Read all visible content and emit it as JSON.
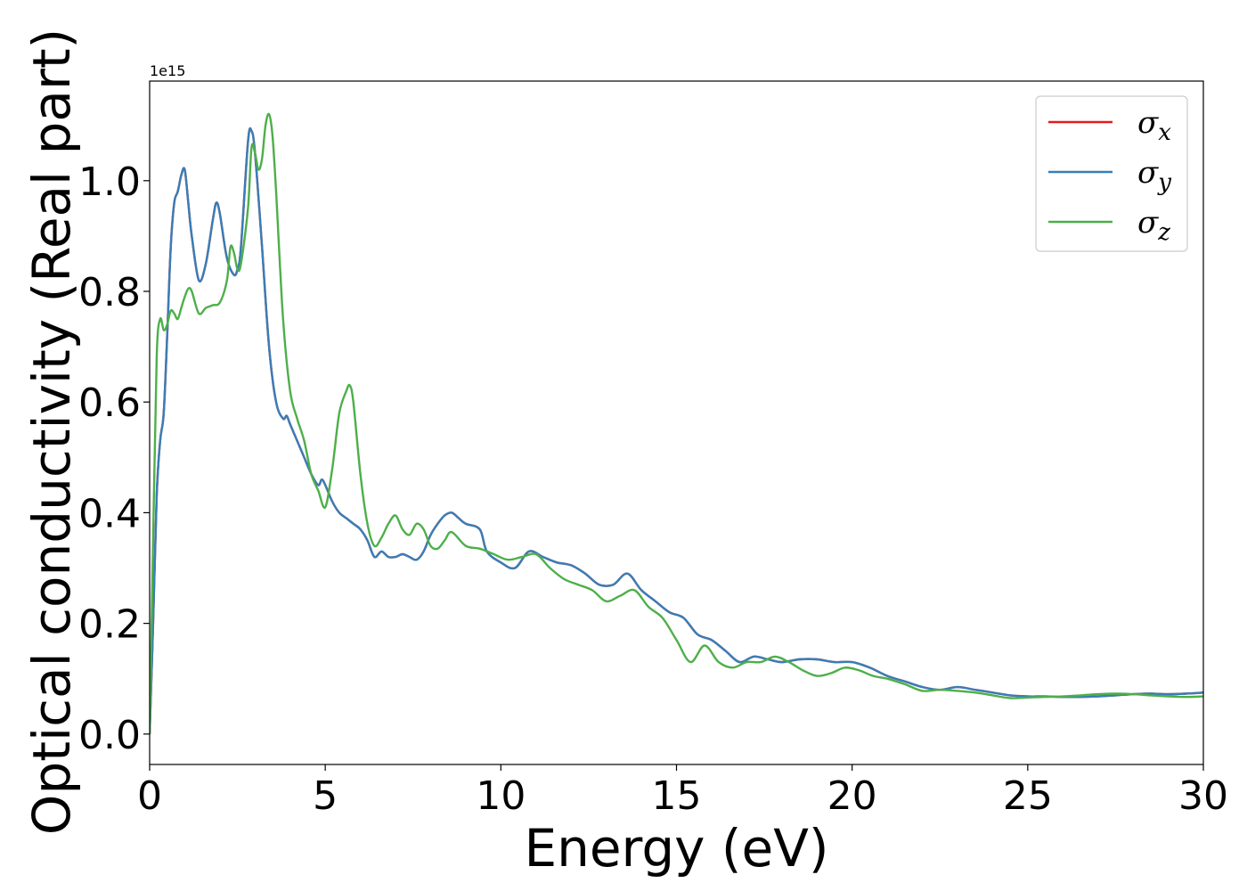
{
  "chart_data": {
    "type": "line",
    "xlabel": "Energy (eV)",
    "ylabel": "Optical conductivity (Real part)",
    "y_offset_label": "1e15",
    "xlim": [
      0,
      30
    ],
    "ylim": [
      -0.055,
      1.18
    ],
    "xticks": [
      0,
      5,
      10,
      15,
      20,
      25,
      30
    ],
    "xtick_labels": [
      "0",
      "5",
      "10",
      "15",
      "20",
      "25",
      "30"
    ],
    "yticks": [
      0.0,
      0.2,
      0.4,
      0.6,
      0.8,
      1.0
    ],
    "ytick_labels": [
      "0.0",
      "0.2",
      "0.4",
      "0.6",
      "0.8",
      "1.0"
    ],
    "grid": false,
    "legend_position": "top-right",
    "series": [
      {
        "name": "σ",
        "subscript": "x",
        "color": "#e41a1c",
        "x": [
          0,
          0.1,
          0.2,
          0.3,
          0.4,
          0.5,
          0.6,
          0.7,
          0.8,
          0.9,
          1.0,
          1.1,
          1.2,
          1.4,
          1.6,
          1.8,
          1.9,
          2.0,
          2.2,
          2.4,
          2.5,
          2.6,
          2.8,
          2.9,
          3.0,
          3.2,
          3.4,
          3.6,
          3.8,
          3.9,
          4.0,
          4.2,
          4.4,
          4.6,
          4.8,
          4.9,
          5.0,
          5.2,
          5.4,
          5.6,
          5.8,
          6.0,
          6.2,
          6.4,
          6.6,
          6.8,
          7.0,
          7.2,
          7.4,
          7.6,
          7.8,
          8.0,
          8.2,
          8.4,
          8.6,
          8.8,
          9.0,
          9.4,
          9.6,
          10.0,
          10.4,
          10.8,
          11.2,
          11.6,
          12.0,
          12.4,
          12.8,
          13.2,
          13.6,
          14.0,
          14.4,
          14.8,
          15.2,
          15.6,
          16.0,
          16.4,
          16.8,
          17.2,
          17.6,
          18.0,
          18.5,
          19.0,
          19.5,
          20.0,
          20.5,
          21.0,
          21.5,
          22.0,
          22.5,
          23.0,
          23.5,
          24.0,
          24.5,
          25.0,
          25.5,
          26.0,
          26.5,
          27.0,
          27.5,
          28.0,
          28.5,
          29.0,
          29.5,
          30.0
        ],
        "y": [
          0.0,
          0.2,
          0.43,
          0.53,
          0.58,
          0.72,
          0.88,
          0.96,
          0.98,
          1.01,
          1.02,
          0.96,
          0.9,
          0.82,
          0.85,
          0.93,
          0.96,
          0.94,
          0.86,
          0.83,
          0.84,
          0.88,
          1.07,
          1.09,
          1.05,
          0.88,
          0.7,
          0.6,
          0.57,
          0.575,
          0.56,
          0.53,
          0.5,
          0.47,
          0.45,
          0.46,
          0.45,
          0.42,
          0.4,
          0.39,
          0.38,
          0.37,
          0.35,
          0.32,
          0.33,
          0.32,
          0.32,
          0.325,
          0.32,
          0.315,
          0.33,
          0.36,
          0.38,
          0.395,
          0.4,
          0.39,
          0.38,
          0.37,
          0.33,
          0.31,
          0.3,
          0.33,
          0.32,
          0.31,
          0.305,
          0.29,
          0.27,
          0.27,
          0.29,
          0.26,
          0.24,
          0.22,
          0.21,
          0.18,
          0.17,
          0.15,
          0.13,
          0.14,
          0.135,
          0.13,
          0.135,
          0.135,
          0.13,
          0.13,
          0.12,
          0.105,
          0.095,
          0.085,
          0.08,
          0.085,
          0.08,
          0.075,
          0.07,
          0.068,
          0.068,
          0.067,
          0.067,
          0.068,
          0.07,
          0.072,
          0.073,
          0.072,
          0.073,
          0.075
        ]
      },
      {
        "name": "σ",
        "subscript": "y",
        "color": "#377eb8",
        "x": [
          0,
          0.1,
          0.2,
          0.3,
          0.4,
          0.5,
          0.6,
          0.7,
          0.8,
          0.9,
          1.0,
          1.1,
          1.2,
          1.4,
          1.6,
          1.8,
          1.9,
          2.0,
          2.2,
          2.4,
          2.5,
          2.6,
          2.8,
          2.9,
          3.0,
          3.2,
          3.4,
          3.6,
          3.8,
          3.9,
          4.0,
          4.2,
          4.4,
          4.6,
          4.8,
          4.9,
          5.0,
          5.2,
          5.4,
          5.6,
          5.8,
          6.0,
          6.2,
          6.4,
          6.6,
          6.8,
          7.0,
          7.2,
          7.4,
          7.6,
          7.8,
          8.0,
          8.2,
          8.4,
          8.6,
          8.8,
          9.0,
          9.4,
          9.6,
          10.0,
          10.4,
          10.8,
          11.2,
          11.6,
          12.0,
          12.4,
          12.8,
          13.2,
          13.6,
          14.0,
          14.4,
          14.8,
          15.2,
          15.6,
          16.0,
          16.4,
          16.8,
          17.2,
          17.6,
          18.0,
          18.5,
          19.0,
          19.5,
          20.0,
          20.5,
          21.0,
          21.5,
          22.0,
          22.5,
          23.0,
          23.5,
          24.0,
          24.5,
          25.0,
          25.5,
          26.0,
          26.5,
          27.0,
          27.5,
          28.0,
          28.5,
          29.0,
          29.5,
          30.0
        ],
        "y": [
          0.0,
          0.2,
          0.43,
          0.53,
          0.58,
          0.72,
          0.88,
          0.96,
          0.98,
          1.01,
          1.02,
          0.96,
          0.9,
          0.82,
          0.85,
          0.93,
          0.96,
          0.94,
          0.86,
          0.83,
          0.84,
          0.88,
          1.07,
          1.09,
          1.05,
          0.88,
          0.7,
          0.6,
          0.57,
          0.575,
          0.56,
          0.53,
          0.5,
          0.47,
          0.45,
          0.46,
          0.45,
          0.42,
          0.4,
          0.39,
          0.38,
          0.37,
          0.35,
          0.32,
          0.33,
          0.32,
          0.32,
          0.325,
          0.32,
          0.315,
          0.33,
          0.36,
          0.38,
          0.395,
          0.4,
          0.39,
          0.38,
          0.37,
          0.33,
          0.31,
          0.3,
          0.33,
          0.32,
          0.31,
          0.305,
          0.29,
          0.27,
          0.27,
          0.29,
          0.26,
          0.24,
          0.22,
          0.21,
          0.18,
          0.17,
          0.15,
          0.13,
          0.14,
          0.135,
          0.13,
          0.135,
          0.135,
          0.13,
          0.13,
          0.12,
          0.105,
          0.095,
          0.085,
          0.08,
          0.085,
          0.08,
          0.075,
          0.07,
          0.068,
          0.068,
          0.067,
          0.067,
          0.068,
          0.07,
          0.072,
          0.073,
          0.072,
          0.073,
          0.075
        ]
      },
      {
        "name": "σ",
        "subscript": "z",
        "color": "#4daf4a",
        "x": [
          0,
          0.1,
          0.2,
          0.3,
          0.4,
          0.5,
          0.6,
          0.7,
          0.8,
          0.9,
          1.0,
          1.1,
          1.2,
          1.4,
          1.6,
          1.8,
          2.0,
          2.2,
          2.3,
          2.4,
          2.5,
          2.6,
          2.8,
          2.9,
          3.0,
          3.1,
          3.2,
          3.3,
          3.4,
          3.5,
          3.6,
          3.8,
          4.0,
          4.2,
          4.4,
          4.6,
          4.8,
          5.0,
          5.2,
          5.4,
          5.6,
          5.7,
          5.8,
          6.0,
          6.2,
          6.4,
          6.6,
          6.8,
          7.0,
          7.2,
          7.4,
          7.6,
          7.8,
          8.0,
          8.2,
          8.4,
          8.6,
          9.0,
          9.4,
          9.8,
          10.2,
          10.6,
          11.0,
          11.4,
          11.8,
          12.2,
          12.6,
          13.0,
          13.4,
          13.8,
          14.2,
          14.6,
          15.0,
          15.4,
          15.8,
          16.2,
          16.6,
          17.0,
          17.4,
          17.8,
          18.2,
          18.6,
          19.0,
          19.4,
          19.8,
          20.2,
          20.6,
          21.0,
          21.5,
          22.0,
          22.5,
          23.0,
          23.5,
          24.0,
          24.5,
          25.0,
          25.5,
          26.0,
          26.5,
          27.0,
          27.5,
          28.0,
          28.5,
          29.0,
          29.5,
          30.0
        ],
        "y": [
          0.0,
          0.35,
          0.68,
          0.75,
          0.73,
          0.74,
          0.765,
          0.76,
          0.75,
          0.77,
          0.79,
          0.805,
          0.8,
          0.76,
          0.77,
          0.775,
          0.78,
          0.82,
          0.88,
          0.87,
          0.84,
          0.85,
          0.95,
          1.06,
          1.05,
          1.02,
          1.04,
          1.1,
          1.12,
          1.08,
          0.98,
          0.75,
          0.62,
          0.57,
          0.53,
          0.47,
          0.44,
          0.41,
          0.48,
          0.58,
          0.62,
          0.63,
          0.6,
          0.47,
          0.38,
          0.34,
          0.355,
          0.38,
          0.395,
          0.37,
          0.36,
          0.38,
          0.37,
          0.34,
          0.335,
          0.35,
          0.365,
          0.34,
          0.335,
          0.325,
          0.315,
          0.32,
          0.325,
          0.3,
          0.28,
          0.27,
          0.26,
          0.24,
          0.25,
          0.26,
          0.23,
          0.21,
          0.17,
          0.13,
          0.16,
          0.13,
          0.12,
          0.13,
          0.13,
          0.14,
          0.13,
          0.115,
          0.105,
          0.11,
          0.12,
          0.115,
          0.105,
          0.1,
          0.09,
          0.078,
          0.08,
          0.078,
          0.075,
          0.07,
          0.065,
          0.066,
          0.067,
          0.068,
          0.07,
          0.072,
          0.073,
          0.072,
          0.07,
          0.068,
          0.067,
          0.068
        ]
      }
    ]
  }
}
